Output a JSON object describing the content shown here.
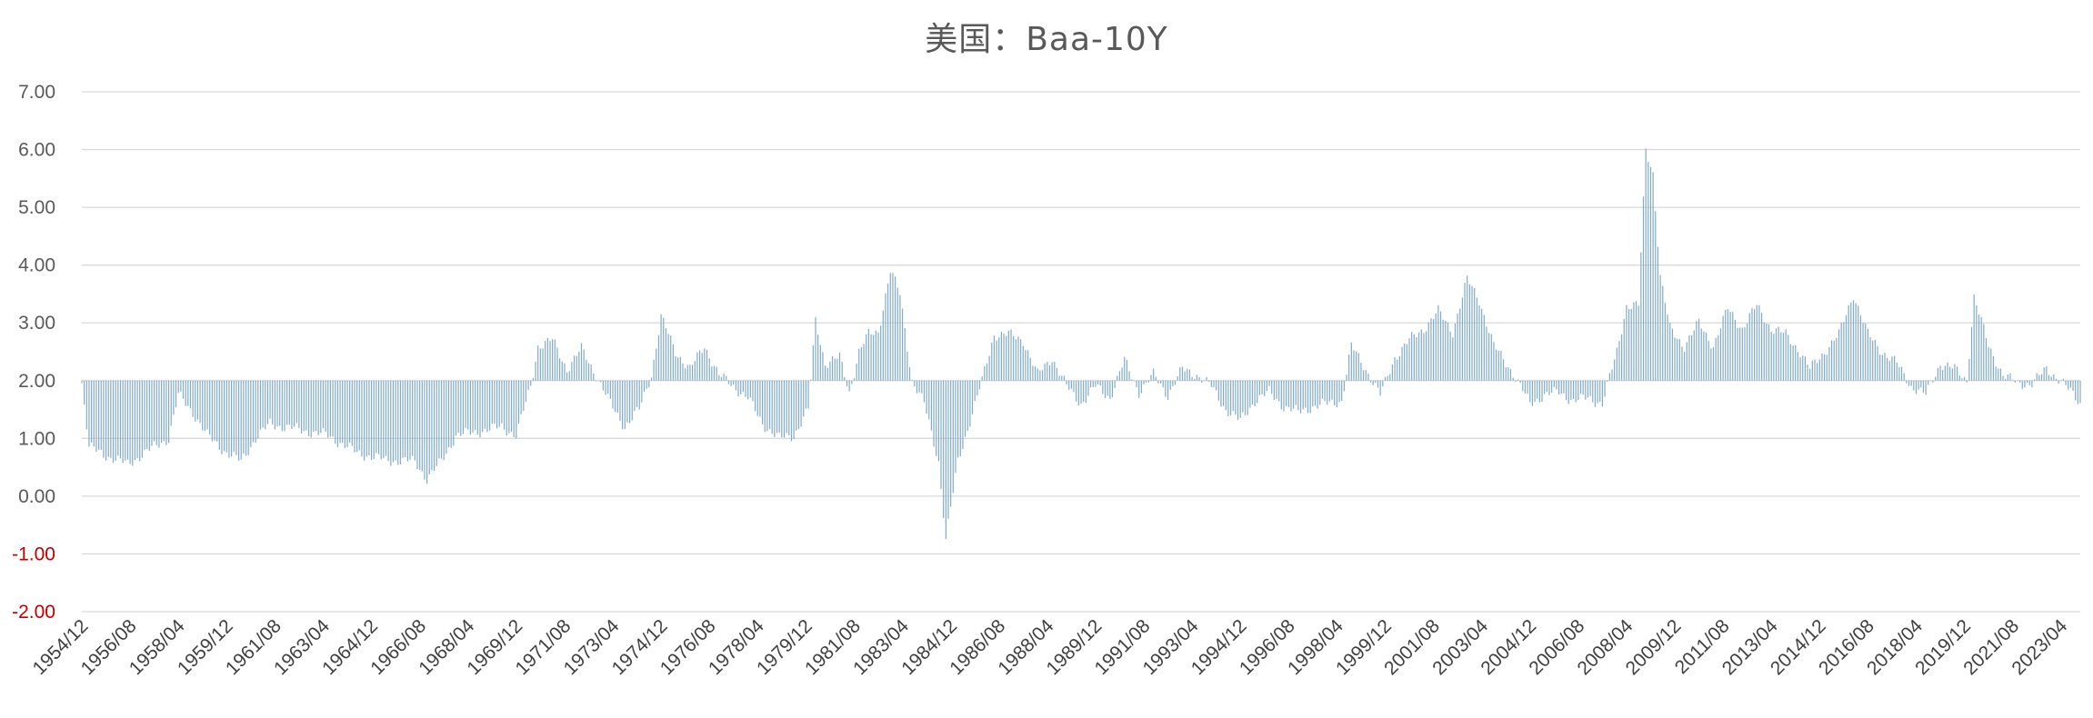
{
  "chart_data": {
    "type": "bar",
    "title": "美国：Baa-10Y",
    "xlabel": "",
    "ylabel": "",
    "ylim": [
      -2,
      7
    ],
    "yticks": [
      "7.00",
      "6.00",
      "5.00",
      "4.00",
      "3.00",
      "2.00",
      "1.00",
      "0.00",
      "-1.00",
      "-2.00"
    ],
    "negative_tick_color": "#C00000",
    "positive_tick_color": "#595959",
    "bar_color": "#7FAACC",
    "gridline_color": "#D9D9D9",
    "bar_base": 2,
    "grid": true,
    "x_start": "1954/12",
    "x_end": "2023/12",
    "xtick_labels": [
      "1954/12",
      "1956/08",
      "1958/04",
      "1959/12",
      "1961/08",
      "1963/04",
      "1964/12",
      "1966/08",
      "1968/04",
      "1969/12",
      "1971/08",
      "1973/04",
      "1974/12",
      "1976/08",
      "1978/04",
      "1979/12",
      "1981/08",
      "1983/04",
      "1984/12",
      "1986/08",
      "1988/04",
      "1989/12",
      "1991/08",
      "1993/04",
      "1994/12",
      "1996/08",
      "1998/04",
      "1999/12",
      "2001/08",
      "2003/04",
      "2004/12",
      "2006/08",
      "2008/04",
      "2009/12",
      "2011/08",
      "2013/04",
      "2014/12",
      "2016/08",
      "2018/04",
      "2019/12",
      "2021/08",
      "2023/04"
    ],
    "series": [
      {
        "frequency": "monthly",
        "anchors": [
          [
            "1954/12",
            1.95
          ],
          [
            "1955/03",
            0.85
          ],
          [
            "1955/09",
            0.72
          ],
          [
            "1956/03",
            0.62
          ],
          [
            "1956/07",
            0.55
          ],
          [
            "1957/01",
            0.72
          ],
          [
            "1957/06",
            0.85
          ],
          [
            "1957/12",
            1.0
          ],
          [
            "1958/04",
            1.75
          ],
          [
            "1958/10",
            1.45
          ],
          [
            "1959/04",
            1.05
          ],
          [
            "1959/12",
            0.75
          ],
          [
            "1960/06",
            0.6
          ],
          [
            "1960/12",
            1.0
          ],
          [
            "1961/06",
            1.25
          ],
          [
            "1962/06",
            1.15
          ],
          [
            "1963/06",
            1.05
          ],
          [
            "1964/06",
            0.75
          ],
          [
            "1965/06",
            0.62
          ],
          [
            "1966/06",
            0.6
          ],
          [
            "1966/11",
            0.3
          ],
          [
            "1967/05",
            0.6
          ],
          [
            "1967/11",
            1.05
          ],
          [
            "1968/06",
            1.1
          ],
          [
            "1969/06",
            1.2
          ],
          [
            "1969/12",
            1.05
          ],
          [
            "1970/06",
            1.9
          ],
          [
            "1970/09",
            2.6
          ],
          [
            "1971/03",
            2.7
          ],
          [
            "1971/09",
            2.2
          ],
          [
            "1972/03",
            2.55
          ],
          [
            "1972/09",
            2.1
          ],
          [
            "1973/03",
            1.6
          ],
          [
            "1973/09",
            1.2
          ],
          [
            "1974/03",
            1.5
          ],
          [
            "1974/08",
            2.1
          ],
          [
            "1974/12",
            3.1
          ],
          [
            "1975/06",
            2.5
          ],
          [
            "1975/12",
            2.2
          ],
          [
            "1976/06",
            2.6
          ],
          [
            "1976/12",
            2.1
          ],
          [
            "1977/06",
            1.9
          ],
          [
            "1977/12",
            1.7
          ],
          [
            "1978/06",
            1.25
          ],
          [
            "1979/01",
            1.0
          ],
          [
            "1979/07",
            1.05
          ],
          [
            "1980/01",
            1.5
          ],
          [
            "1980/04",
            3.05
          ],
          [
            "1980/08",
            2.3
          ],
          [
            "1981/02",
            2.4
          ],
          [
            "1981/06",
            1.8
          ],
          [
            "1981/10",
            2.5
          ],
          [
            "1982/02",
            2.8
          ],
          [
            "1982/06",
            2.85
          ],
          [
            "1982/11",
            3.9
          ],
          [
            "1983/03",
            3.5
          ],
          [
            "1983/08",
            2.0
          ],
          [
            "1984/01",
            1.6
          ],
          [
            "1984/07",
            0.6
          ],
          [
            "1984/10",
            -0.75
          ],
          [
            "1985/03",
            0.6
          ],
          [
            "1985/08",
            1.3
          ],
          [
            "1986/01",
            2.0
          ],
          [
            "1986/06",
            2.8
          ],
          [
            "1986/12",
            2.8
          ],
          [
            "1987/06",
            2.7
          ],
          [
            "1987/12",
            2.1
          ],
          [
            "1988/06",
            2.4
          ],
          [
            "1988/12",
            1.9
          ],
          [
            "1989/06",
            1.6
          ],
          [
            "1989/12",
            1.9
          ],
          [
            "1990/06",
            1.7
          ],
          [
            "1990/12",
            2.35
          ],
          [
            "1991/06",
            1.8
          ],
          [
            "1991/12",
            2.1
          ],
          [
            "1992/06",
            1.75
          ],
          [
            "1992/12",
            2.2
          ],
          [
            "1993/06",
            2.1
          ],
          [
            "1993/12",
            1.9
          ],
          [
            "1994/06",
            1.5
          ],
          [
            "1994/12",
            1.3
          ],
          [
            "1995/06",
            1.65
          ],
          [
            "1995/12",
            1.8
          ],
          [
            "1996/06",
            1.55
          ],
          [
            "1996/12",
            1.45
          ],
          [
            "1997/06",
            1.55
          ],
          [
            "1997/12",
            1.6
          ],
          [
            "1998/06",
            1.65
          ],
          [
            "1998/10",
            2.6
          ],
          [
            "1999/04",
            2.2
          ],
          [
            "1999/10",
            1.75
          ],
          [
            "2000/04",
            2.4
          ],
          [
            "2000/10",
            2.7
          ],
          [
            "2001/04",
            2.9
          ],
          [
            "2001/10",
            3.2
          ],
          [
            "2002/04",
            2.85
          ],
          [
            "2002/10",
            3.75
          ],
          [
            "2003/03",
            3.4
          ],
          [
            "2003/09",
            2.6
          ],
          [
            "2004/04",
            2.2
          ],
          [
            "2004/12",
            1.6
          ],
          [
            "2005/06",
            1.75
          ],
          [
            "2005/12",
            1.8
          ],
          [
            "2006/06",
            1.65
          ],
          [
            "2006/12",
            1.7
          ],
          [
            "2007/06",
            1.6
          ],
          [
            "2007/12",
            2.5
          ],
          [
            "2008/04",
            3.3
          ],
          [
            "2008/09",
            3.3
          ],
          [
            "2008/12",
            6.0
          ],
          [
            "2009/03",
            5.6
          ],
          [
            "2009/06",
            3.8
          ],
          [
            "2009/10",
            2.9
          ],
          [
            "2010/04",
            2.6
          ],
          [
            "2010/10",
            3.0
          ],
          [
            "2011/04",
            2.6
          ],
          [
            "2011/10",
            3.25
          ],
          [
            "2012/04",
            2.9
          ],
          [
            "2012/10",
            3.3
          ],
          [
            "2013/04",
            2.9
          ],
          [
            "2013/10",
            2.8
          ],
          [
            "2014/04",
            2.5
          ],
          [
            "2014/08",
            2.2
          ],
          [
            "2015/02",
            2.5
          ],
          [
            "2015/08",
            2.8
          ],
          [
            "2016/02",
            3.5
          ],
          [
            "2016/08",
            2.8
          ],
          [
            "2017/02",
            2.5
          ],
          [
            "2017/08",
            2.3
          ],
          [
            "2018/02",
            1.9
          ],
          [
            "2018/08",
            1.75
          ],
          [
            "2019/02",
            2.3
          ],
          [
            "2019/08",
            2.2
          ],
          [
            "2020/01",
            2.0
          ],
          [
            "2020/04",
            3.45
          ],
          [
            "2020/10",
            2.6
          ],
          [
            "2021/04",
            2.1
          ],
          [
            "2021/10",
            1.95
          ],
          [
            "2022/04",
            1.95
          ],
          [
            "2022/10",
            2.2
          ],
          [
            "2023/04",
            2.0
          ],
          [
            "2023/12",
            1.6
          ]
        ]
      }
    ]
  }
}
